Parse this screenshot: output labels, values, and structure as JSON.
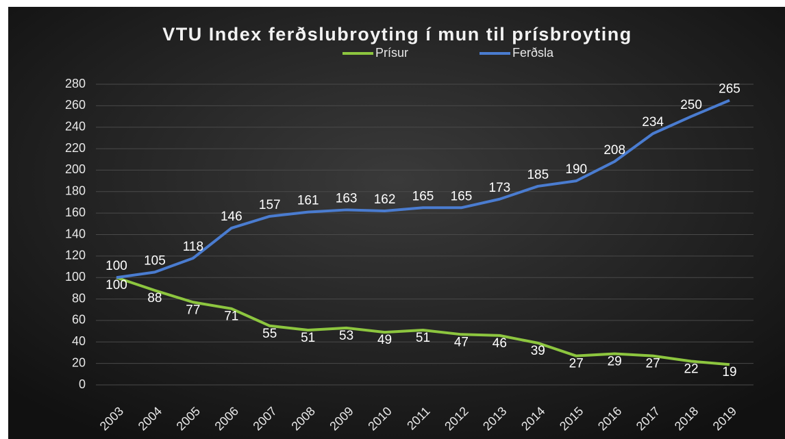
{
  "chart_data": {
    "type": "line",
    "title": "VTU Index ferðslubroyting í mun til prísbroyting",
    "categories": [
      "2003",
      "2004",
      "2005",
      "2006",
      "2007",
      "2008",
      "2009",
      "2010",
      "2011",
      "2012",
      "2013",
      "2014",
      "2015",
      "2016",
      "2017",
      "2018",
      "2019"
    ],
    "series": [
      {
        "name": "Prísur",
        "color": "#8dc63f",
        "values": [
          100,
          88,
          77,
          71,
          55,
          51,
          53,
          49,
          51,
          47,
          46,
          39,
          27,
          29,
          27,
          22,
          19
        ]
      },
      {
        "name": "Ferðsla",
        "color": "#4a7cd0",
        "values": [
          100,
          105,
          118,
          146,
          157,
          161,
          163,
          162,
          165,
          165,
          173,
          185,
          190,
          208,
          234,
          250,
          265
        ]
      }
    ],
    "ylim": [
      0,
      280
    ],
    "yticks": [
      0,
      20,
      40,
      60,
      80,
      100,
      120,
      140,
      160,
      180,
      200,
      220,
      240,
      260,
      280
    ],
    "grid": true,
    "legend": "top"
  }
}
